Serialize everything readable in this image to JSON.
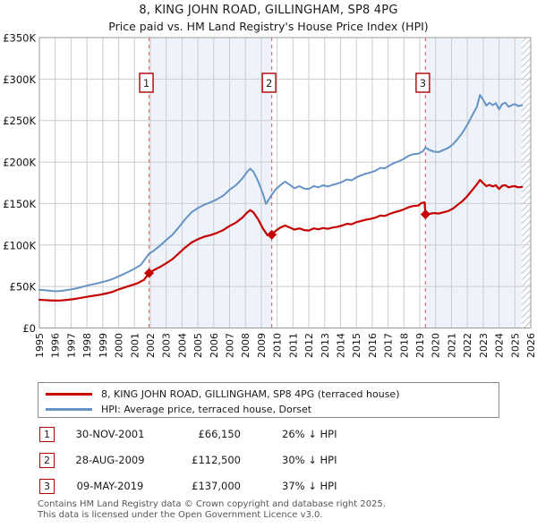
{
  "header": {
    "title": "8, KING JOHN ROAD, GILLINGHAM, SP8 4PG",
    "subtitle": "Price paid vs. HM Land Registry's House Price Index (HPI)"
  },
  "legend": {
    "items": [
      {
        "label": "8, KING JOHN ROAD, GILLINGHAM, SP8 4PG (terraced house)",
        "color": "#c40000"
      },
      {
        "label": "HPI: Average price, terraced house, Dorset",
        "color": "#6593c5"
      }
    ]
  },
  "footer": {
    "line1": "Contains HM Land Registry data © Crown copyright and database right 2025.",
    "line2": "This data is licensed under the Open Government Licence v3.0."
  },
  "chart_data": {
    "type": "line",
    "title": "8, KING JOHN ROAD, GILLINGHAM, SP8 4PG",
    "subtitle": "Price paid vs. HM Land Registry's House Price Index (HPI)",
    "x_range": [
      1995,
      2026
    ],
    "y_range": [
      0,
      350000
    ],
    "grid": true,
    "colors": {
      "property_line": "#c40000",
      "hpi_line": "#6593c5",
      "sale_dash_line": "#f26d6d",
      "shaded_band": "#eef2fb",
      "gridline": "#cccccc",
      "plot_border": "#999999",
      "marker_box_border": "#b00000",
      "hatch_stroke": "#b9c2cc"
    },
    "x_ticks": [
      "1995",
      "1996",
      "1997",
      "1998",
      "1999",
      "2000",
      "2001",
      "2002",
      "2003",
      "2004",
      "2005",
      "2006",
      "2007",
      "2008",
      "2009",
      "2010",
      "2011",
      "2012",
      "2013",
      "2014",
      "2015",
      "2016",
      "2017",
      "2018",
      "2019",
      "2020",
      "2021",
      "2022",
      "2023",
      "2024",
      "2025",
      "2026"
    ],
    "y_ticks": [
      {
        "value": 0,
        "label": "£0"
      },
      {
        "value": 50000,
        "label": "£50K"
      },
      {
        "value": 100000,
        "label": "£100K"
      },
      {
        "value": 150000,
        "label": "£150K"
      },
      {
        "value": 200000,
        "label": "£200K"
      },
      {
        "value": 250000,
        "label": "£250K"
      },
      {
        "value": 300000,
        "label": "£300K"
      },
      {
        "value": 350000,
        "label": "£350K"
      }
    ],
    "shaded_bands": [
      [
        2001.92,
        2009.66
      ],
      [
        2019.36,
        2025.45
      ]
    ],
    "hatch_band": [
      2025.45,
      2026
    ],
    "sales": [
      {
        "n": "1",
        "date": "30-NOV-2001",
        "year": 2001.92,
        "price": 66150,
        "price_label": "£66,150",
        "hpi_diff": "26% ↓ HPI"
      },
      {
        "n": "2",
        "date": "28-AUG-2009",
        "year": 2009.66,
        "price": 112500,
        "price_label": "£112,500",
        "hpi_diff": "30% ↓ HPI"
      },
      {
        "n": "3",
        "date": "09-MAY-2019",
        "year": 2019.36,
        "price": 137000,
        "price_label": "£137,000",
        "hpi_diff": "37% ↓ HPI"
      }
    ],
    "series": [
      {
        "name": "HPI: Average price, terraced house, Dorset",
        "color": "#6593c5",
        "width": 2,
        "points": [
          [
            1995.0,
            46000
          ],
          [
            1995.3,
            45500
          ],
          [
            1995.6,
            45000
          ],
          [
            1996.0,
            44200
          ],
          [
            1996.4,
            44800
          ],
          [
            1997.0,
            46500
          ],
          [
            1997.4,
            48000
          ],
          [
            1997.8,
            50000
          ],
          [
            1998.2,
            52000
          ],
          [
            1998.6,
            53500
          ],
          [
            1999.0,
            55500
          ],
          [
            1999.4,
            57500
          ],
          [
            1999.8,
            60500
          ],
          [
            2000.2,
            64000
          ],
          [
            2000.6,
            67500
          ],
          [
            2001.0,
            71500
          ],
          [
            2001.4,
            76000
          ],
          [
            2001.92,
            89500
          ],
          [
            2002.2,
            93000
          ],
          [
            2002.6,
            99000
          ],
          [
            2003.0,
            106000
          ],
          [
            2003.4,
            112500
          ],
          [
            2003.8,
            121500
          ],
          [
            2004.2,
            131000
          ],
          [
            2004.6,
            139500
          ],
          [
            2005.0,
            144500
          ],
          [
            2005.4,
            148500
          ],
          [
            2005.8,
            151500
          ],
          [
            2006.2,
            155000
          ],
          [
            2006.6,
            159500
          ],
          [
            2007.0,
            166500
          ],
          [
            2007.4,
            172000
          ],
          [
            2007.8,
            180000
          ],
          [
            2008.1,
            188000
          ],
          [
            2008.3,
            192000
          ],
          [
            2008.5,
            188500
          ],
          [
            2008.8,
            177000
          ],
          [
            2009.1,
            162000
          ],
          [
            2009.3,
            149500
          ],
          [
            2009.66,
            160500
          ],
          [
            2009.9,
            167000
          ],
          [
            2010.2,
            172000
          ],
          [
            2010.5,
            176500
          ],
          [
            2010.8,
            172500
          ],
          [
            2011.1,
            168500
          ],
          [
            2011.4,
            171000
          ],
          [
            2011.7,
            168000
          ],
          [
            2012.0,
            167500
          ],
          [
            2012.3,
            171000
          ],
          [
            2012.6,
            169500
          ],
          [
            2012.9,
            172000
          ],
          [
            2013.2,
            170500
          ],
          [
            2013.5,
            172500
          ],
          [
            2013.8,
            174000
          ],
          [
            2014.1,
            176000
          ],
          [
            2014.4,
            179000
          ],
          [
            2014.7,
            178000
          ],
          [
            2015.0,
            181500
          ],
          [
            2015.3,
            184000
          ],
          [
            2015.6,
            186000
          ],
          [
            2015.9,
            187500
          ],
          [
            2016.2,
            189500
          ],
          [
            2016.5,
            193000
          ],
          [
            2016.8,
            192500
          ],
          [
            2017.1,
            196000
          ],
          [
            2017.4,
            199000
          ],
          [
            2017.7,
            201000
          ],
          [
            2018.0,
            204000
          ],
          [
            2018.3,
            207500
          ],
          [
            2018.6,
            209500
          ],
          [
            2018.9,
            210000
          ],
          [
            2019.2,
            213000
          ],
          [
            2019.36,
            217500
          ],
          [
            2019.6,
            214500
          ],
          [
            2019.9,
            212500
          ],
          [
            2020.2,
            212000
          ],
          [
            2020.5,
            214500
          ],
          [
            2020.8,
            217000
          ],
          [
            2021.1,
            221500
          ],
          [
            2021.4,
            228000
          ],
          [
            2021.7,
            235500
          ],
          [
            2022.0,
            245000
          ],
          [
            2022.3,
            256000
          ],
          [
            2022.6,
            266500
          ],
          [
            2022.8,
            281000
          ],
          [
            2023.0,
            275000
          ],
          [
            2023.2,
            268000
          ],
          [
            2023.4,
            271500
          ],
          [
            2023.6,
            268500
          ],
          [
            2023.8,
            271000
          ],
          [
            2024.0,
            263500
          ],
          [
            2024.2,
            270000
          ],
          [
            2024.4,
            271500
          ],
          [
            2024.6,
            266500
          ],
          [
            2024.8,
            268500
          ],
          [
            2025.0,
            270000
          ],
          [
            2025.2,
            267500
          ],
          [
            2025.45,
            268500
          ]
        ]
      },
      {
        "name": "8, KING JOHN ROAD, GILLINGHAM, SP8 4PG (terraced house)",
        "color": "#c40000",
        "width": 2.2,
        "points": [
          [
            1995.0,
            34000
          ],
          [
            1995.3,
            33600
          ],
          [
            1995.6,
            33300
          ],
          [
            1996.0,
            33000
          ],
          [
            1996.4,
            33200
          ],
          [
            1996.8,
            34000
          ],
          [
            1997.2,
            35000
          ],
          [
            1997.6,
            36200
          ],
          [
            1998.0,
            37500
          ],
          [
            1998.4,
            38800
          ],
          [
            1998.8,
            40000
          ],
          [
            1999.2,
            41500
          ],
          [
            1999.6,
            43500
          ],
          [
            2000.0,
            46500
          ],
          [
            2000.4,
            49000
          ],
          [
            2000.8,
            51500
          ],
          [
            2001.2,
            54000
          ],
          [
            2001.6,
            58000
          ],
          [
            2001.92,
            66150
          ],
          [
            2002.2,
            69500
          ],
          [
            2002.6,
            73500
          ],
          [
            2003.0,
            78000
          ],
          [
            2003.4,
            83000
          ],
          [
            2003.8,
            90000
          ],
          [
            2004.2,
            97000
          ],
          [
            2004.6,
            103000
          ],
          [
            2005.0,
            107000
          ],
          [
            2005.4,
            110000
          ],
          [
            2005.8,
            112000
          ],
          [
            2006.2,
            114500
          ],
          [
            2006.6,
            118000
          ],
          [
            2007.0,
            123000
          ],
          [
            2007.4,
            127000
          ],
          [
            2007.8,
            133000
          ],
          [
            2008.1,
            139000
          ],
          [
            2008.3,
            142000
          ],
          [
            2008.5,
            139500
          ],
          [
            2008.8,
            131000
          ],
          [
            2009.1,
            120000
          ],
          [
            2009.4,
            111500
          ],
          [
            2009.66,
            112500
          ],
          [
            2009.9,
            117000
          ],
          [
            2010.2,
            121000
          ],
          [
            2010.5,
            123500
          ],
          [
            2010.8,
            121000
          ],
          [
            2011.1,
            118500
          ],
          [
            2011.4,
            120000
          ],
          [
            2011.7,
            118000
          ],
          [
            2012.0,
            117500
          ],
          [
            2012.3,
            120000
          ],
          [
            2012.6,
            119000
          ],
          [
            2012.9,
            120500
          ],
          [
            2013.2,
            119500
          ],
          [
            2013.5,
            121000
          ],
          [
            2013.8,
            122000
          ],
          [
            2014.1,
            123500
          ],
          [
            2014.4,
            125500
          ],
          [
            2014.7,
            125000
          ],
          [
            2015.0,
            127500
          ],
          [
            2015.3,
            129000
          ],
          [
            2015.6,
            130500
          ],
          [
            2015.9,
            131500
          ],
          [
            2016.2,
            133000
          ],
          [
            2016.5,
            135500
          ],
          [
            2016.8,
            135000
          ],
          [
            2017.1,
            137500
          ],
          [
            2017.4,
            139500
          ],
          [
            2017.7,
            141000
          ],
          [
            2018.0,
            143000
          ],
          [
            2018.3,
            145500
          ],
          [
            2018.6,
            147000
          ],
          [
            2018.9,
            147500
          ],
          [
            2019.1,
            150500
          ],
          [
            2019.3,
            151500
          ],
          [
            2019.36,
            137000
          ],
          [
            2019.6,
            137500
          ],
          [
            2019.9,
            138500
          ],
          [
            2020.2,
            138000
          ],
          [
            2020.5,
            139500
          ],
          [
            2020.8,
            141000
          ],
          [
            2021.1,
            144000
          ],
          [
            2021.4,
            148500
          ],
          [
            2021.7,
            153000
          ],
          [
            2022.0,
            159000
          ],
          [
            2022.3,
            166000
          ],
          [
            2022.6,
            173000
          ],
          [
            2022.8,
            178500
          ],
          [
            2023.0,
            174500
          ],
          [
            2023.2,
            171000
          ],
          [
            2023.4,
            172500
          ],
          [
            2023.6,
            170500
          ],
          [
            2023.8,
            172000
          ],
          [
            2024.0,
            167500
          ],
          [
            2024.2,
            171500
          ],
          [
            2024.4,
            172000
          ],
          [
            2024.6,
            169500
          ],
          [
            2024.8,
            170500
          ],
          [
            2025.0,
            171000
          ],
          [
            2025.2,
            169500
          ],
          [
            2025.45,
            170000
          ]
        ]
      }
    ]
  }
}
